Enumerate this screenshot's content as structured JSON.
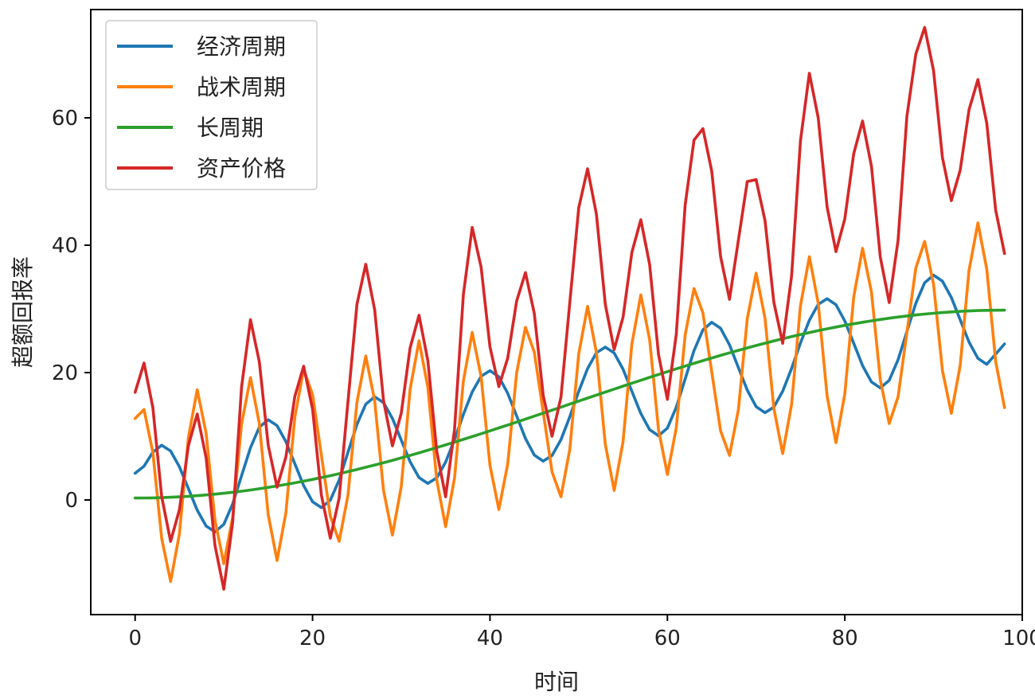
{
  "chart_data": {
    "type": "line",
    "title": "",
    "xlabel": "时间",
    "ylabel": "超额回报率",
    "xlim": [
      -5,
      100
    ],
    "ylim": [
      -18,
      77
    ],
    "xticks": [
      0,
      20,
      40,
      60,
      80,
      100
    ],
    "yticks": [
      0,
      20,
      40,
      60
    ],
    "grid": false,
    "legend_position": "top-left",
    "x_start": 0,
    "x_end": 98,
    "series": [
      {
        "name": "经济周期",
        "color": "#1f77b4",
        "keypoints": [
          [
            0,
            4.2
          ],
          [
            3,
            8.6
          ],
          [
            9,
            -5.0
          ],
          [
            15,
            12.6
          ],
          [
            21,
            -1.2
          ],
          [
            27,
            16.2
          ],
          [
            33,
            2.6
          ],
          [
            40,
            20.3
          ],
          [
            46,
            6.1
          ],
          [
            53,
            24.0
          ],
          [
            59,
            10.1
          ],
          [
            65,
            27.9
          ],
          [
            71,
            13.7
          ],
          [
            78,
            31.6
          ],
          [
            84,
            17.6
          ],
          [
            90,
            35.3
          ],
          [
            96,
            21.3
          ],
          [
            98,
            24.5
          ]
        ]
      },
      {
        "name": "战术周期",
        "color": "#ff7f0e",
        "keypoints": [
          [
            0,
            12.8
          ],
          [
            1,
            14.2
          ],
          [
            4,
            -12.8
          ],
          [
            7,
            17.3
          ],
          [
            10,
            -10.0
          ],
          [
            13,
            19.2
          ],
          [
            16,
            -9.5
          ],
          [
            19,
            20.5
          ],
          [
            23,
            -6.5
          ],
          [
            26,
            22.6
          ],
          [
            29,
            -5.5
          ],
          [
            32,
            25.0
          ],
          [
            35,
            -4.2
          ],
          [
            38,
            26.3
          ],
          [
            41,
            -1.5
          ],
          [
            44,
            27.1
          ],
          [
            48,
            0.5
          ],
          [
            51,
            30.4
          ],
          [
            54,
            1.5
          ],
          [
            57,
            32.2
          ],
          [
            60,
            4.0
          ],
          [
            63,
            33.2
          ],
          [
            67,
            7.0
          ],
          [
            70,
            35.6
          ],
          [
            73,
            7.3
          ],
          [
            76,
            38.2
          ],
          [
            79,
            9.0
          ],
          [
            82,
            39.5
          ],
          [
            85,
            12.0
          ],
          [
            89,
            40.6
          ],
          [
            92,
            13.6
          ],
          [
            95,
            43.5
          ],
          [
            98,
            14.5
          ]
        ]
      },
      {
        "name": "长周期",
        "color": "#2ca02c",
        "keypoints": [
          [
            0,
            0.3
          ],
          [
            98,
            29.8
          ]
        ]
      },
      {
        "name": "资产价格",
        "color": "#d62728",
        "keypoints": [
          [
            0,
            16.9
          ],
          [
            1,
            21.5
          ],
          [
            4,
            -6.5
          ],
          [
            7,
            13.5
          ],
          [
            10,
            -14.0
          ],
          [
            13,
            28.3
          ],
          [
            16,
            2.0
          ],
          [
            19,
            21.0
          ],
          [
            22,
            -6.0
          ],
          [
            26,
            37.0
          ],
          [
            29,
            8.5
          ],
          [
            32,
            29.0
          ],
          [
            35,
            0.5
          ],
          [
            38,
            42.8
          ],
          [
            41,
            17.8
          ],
          [
            44,
            35.7
          ],
          [
            47,
            10.0
          ],
          [
            51,
            52.0
          ],
          [
            54,
            23.6
          ],
          [
            57,
            44.0
          ],
          [
            60,
            15.8
          ],
          [
            63,
            56.5
          ],
          [
            64,
            58.3
          ],
          [
            67,
            31.5
          ],
          [
            69,
            50.0
          ],
          [
            70,
            50.3
          ],
          [
            73,
            24.6
          ],
          [
            76,
            67.0
          ],
          [
            79,
            39.0
          ],
          [
            82,
            59.5
          ],
          [
            85,
            31.0
          ],
          [
            88,
            70.0
          ],
          [
            89,
            74.2
          ],
          [
            92,
            47.0
          ],
          [
            95,
            66.0
          ],
          [
            98,
            38.7
          ]
        ]
      }
    ]
  }
}
